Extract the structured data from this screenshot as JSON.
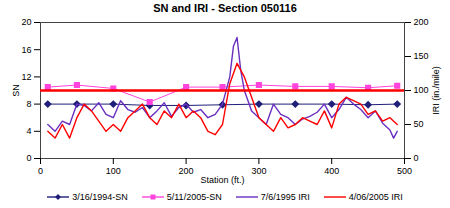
{
  "chart_data": {
    "type": "line",
    "title": "SN and IRI  - Section 050116",
    "x_label": "Station (ft.)",
    "y_label": "SN",
    "y2_label": "IRI (in./mile)",
    "xlim": [
      0,
      500
    ],
    "xticks": [
      0,
      100,
      200,
      300,
      400,
      500
    ],
    "ylim": [
      0,
      20
    ],
    "yticks": [
      0,
      4,
      8,
      12,
      16,
      20
    ],
    "y2lim": [
      0,
      200
    ],
    "y2ticks": [
      0,
      50,
      100,
      150,
      200
    ],
    "grid": false,
    "legend": "bottom",
    "series": [
      {
        "name": "3/16/1994-SN",
        "color": "#1f1f7a",
        "marker": "diamond",
        "axis": "y",
        "x": [
          10,
          50,
          100,
          150,
          200,
          250,
          300,
          350,
          400,
          450,
          490
        ],
        "values": [
          8,
          8,
          8,
          7.8,
          7.8,
          7.9,
          8,
          8,
          8,
          7.9,
          8
        ]
      },
      {
        "name": "5/11/2005-SN",
        "color": "#ff44dd",
        "marker": "square",
        "axis": "y",
        "x": [
          10,
          50,
          100,
          150,
          200,
          250,
          300,
          350,
          400,
          450,
          490
        ],
        "values": [
          10.5,
          10.8,
          10.3,
          8.3,
          10.5,
          10.5,
          10.8,
          10.6,
          10.6,
          10.4,
          10.7
        ]
      },
      {
        "name": "7/6/1995 IRI",
        "color": "#6a2fc0",
        "axis": "y2",
        "x": [
          10,
          20,
          30,
          40,
          50,
          60,
          70,
          80,
          90,
          100,
          110,
          120,
          130,
          140,
          150,
          160,
          170,
          180,
          190,
          200,
          210,
          220,
          230,
          240,
          250,
          260,
          265,
          270,
          275,
          280,
          290,
          300,
          310,
          320,
          330,
          340,
          350,
          360,
          370,
          380,
          390,
          400,
          410,
          420,
          430,
          440,
          450,
          460,
          470,
          480,
          485,
          490
        ],
        "values": [
          50,
          40,
          55,
          50,
          80,
          78,
          70,
          82,
          65,
          60,
          85,
          72,
          68,
          75,
          60,
          70,
          82,
          62,
          75,
          80,
          68,
          72,
          60,
          65,
          80,
          120,
          165,
          178,
          130,
          100,
          70,
          60,
          50,
          80,
          65,
          60,
          50,
          58,
          62,
          68,
          80,
          60,
          72,
          90,
          80,
          72,
          60,
          70,
          52,
          42,
          30,
          40
        ]
      },
      {
        "name": "4/06/2005 IRI",
        "color": "#ff0000",
        "axis": "y2",
        "x": [
          10,
          20,
          30,
          40,
          50,
          60,
          70,
          80,
          90,
          100,
          110,
          120,
          130,
          140,
          150,
          160,
          170,
          180,
          190,
          200,
          210,
          220,
          230,
          240,
          250,
          260,
          270,
          280,
          290,
          300,
          310,
          320,
          330,
          340,
          350,
          360,
          370,
          380,
          390,
          400,
          410,
          420,
          430,
          440,
          450,
          460,
          470,
          480,
          490
        ],
        "values": [
          40,
          30,
          50,
          30,
          60,
          80,
          70,
          55,
          40,
          50,
          40,
          60,
          70,
          80,
          60,
          50,
          70,
          60,
          80,
          60,
          70,
          60,
          40,
          35,
          50,
          110,
          140,
          120,
          90,
          60,
          50,
          40,
          60,
          45,
          50,
          60,
          55,
          50,
          70,
          45,
          80,
          90,
          85,
          80,
          65,
          70,
          55,
          60,
          50
        ]
      },
      {
        "color": "#ff0000",
        "axis": "y2",
        "x": [
          0,
          500
        ],
        "values": [
          100,
          100
        ]
      }
    ]
  }
}
